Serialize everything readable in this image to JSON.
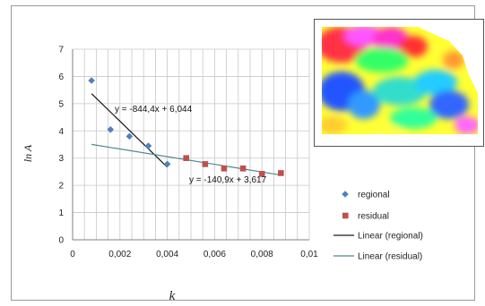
{
  "chart_data": {
    "type": "scatter",
    "xlabel": "k",
    "ylabel": "ln A",
    "xlim": [
      0,
      0.01
    ],
    "ylim": [
      0,
      7
    ],
    "x_ticks": [
      "0",
      "0,002",
      "0,004",
      "0,006",
      "0,008",
      "0,01"
    ],
    "y_ticks": [
      "0",
      "1",
      "2",
      "3",
      "4",
      "5",
      "6",
      "7"
    ],
    "grid": true,
    "legend_position": "right",
    "series": [
      {
        "name": "regional",
        "marker": "diamond",
        "color": "#4f81bd",
        "points": [
          [
            0.0008,
            5.85
          ],
          [
            0.0016,
            4.05
          ],
          [
            0.0024,
            3.8
          ],
          [
            0.0032,
            3.45
          ],
          [
            0.004,
            2.78
          ]
        ]
      },
      {
        "name": "residual",
        "marker": "square",
        "color": "#c0504d",
        "points": [
          [
            0.0048,
            3.0
          ],
          [
            0.0056,
            2.78
          ],
          [
            0.0064,
            2.62
          ],
          [
            0.0072,
            2.62
          ],
          [
            0.008,
            2.42
          ],
          [
            0.0088,
            2.45
          ]
        ]
      }
    ],
    "trendlines": [
      {
        "name": "Linear (regional)",
        "color": "#1a1a1a",
        "slope": -844.4,
        "intercept": 6.044,
        "x_range": [
          0.0008,
          0.004
        ],
        "equation": "y = -844,4x + 6,044"
      },
      {
        "name": "Linear (residual)",
        "color": "#4a8a8a",
        "slope": -140.9,
        "intercept": 3.617,
        "x_range": [
          0.0008,
          0.0088
        ],
        "equation": "y = -140,9x + 3,617"
      }
    ]
  },
  "inset": {
    "kind": "anomaly-map-thumbnail"
  }
}
